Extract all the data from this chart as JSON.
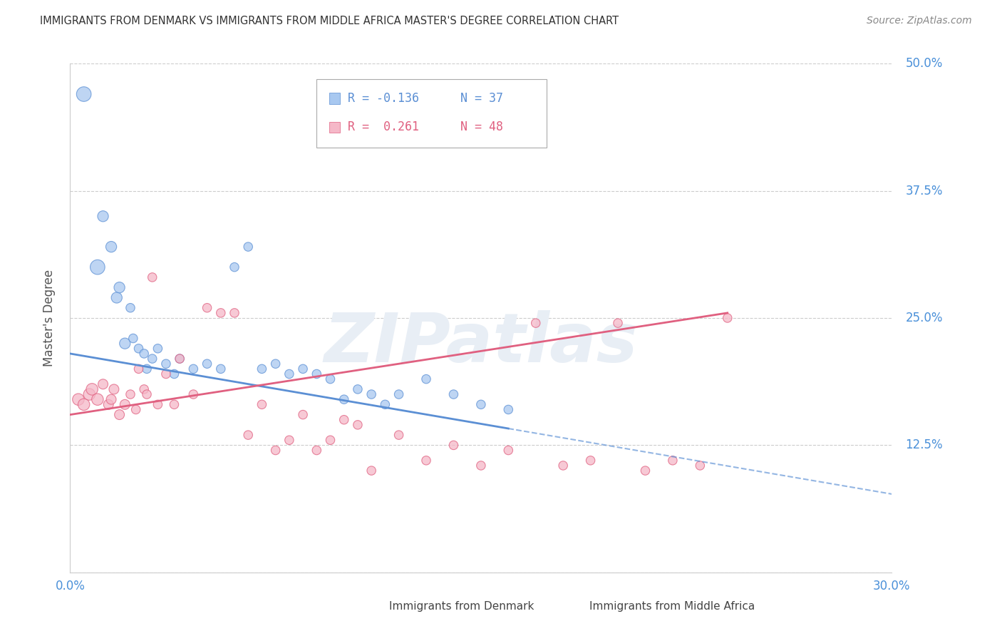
{
  "title": "IMMIGRANTS FROM DENMARK VS IMMIGRANTS FROM MIDDLE AFRICA MASTER'S DEGREE CORRELATION CHART",
  "source": "Source: ZipAtlas.com",
  "ylabel": "Master's Degree",
  "xlim": [
    0.0,
    30.0
  ],
  "ylim": [
    0.0,
    50.0
  ],
  "yticks": [
    0.0,
    12.5,
    25.0,
    37.5,
    50.0
  ],
  "ytick_labels": [
    "",
    "12.5%",
    "25.0%",
    "37.5%",
    "50.0%"
  ],
  "xticks": [
    0.0,
    5.0,
    10.0,
    15.0,
    20.0,
    25.0,
    30.0
  ],
  "denmark_color": "#A8C8F0",
  "denmark_color_solid": "#5B8FD4",
  "middle_africa_color": "#F5B8C8",
  "middle_africa_color_solid": "#E06080",
  "legend_R_denmark": "R = -0.136",
  "legend_N_denmark": "N = 37",
  "legend_R_middle_africa": "R =  0.261",
  "legend_N_middle_africa": "N = 48",
  "denmark_x": [
    0.5,
    1.0,
    1.2,
    1.5,
    1.7,
    1.8,
    2.0,
    2.2,
    2.3,
    2.5,
    2.7,
    2.8,
    3.0,
    3.2,
    3.5,
    3.8,
    4.0,
    4.5,
    5.0,
    5.5,
    6.0,
    6.5,
    7.0,
    7.5,
    8.0,
    8.5,
    9.0,
    9.5,
    10.0,
    10.5,
    11.0,
    11.5,
    12.0,
    13.0,
    14.0,
    15.0,
    16.0
  ],
  "denmark_y": [
    47.0,
    30.0,
    35.0,
    32.0,
    27.0,
    28.0,
    22.5,
    26.0,
    23.0,
    22.0,
    21.5,
    20.0,
    21.0,
    22.0,
    20.5,
    19.5,
    21.0,
    20.0,
    20.5,
    20.0,
    30.0,
    32.0,
    20.0,
    20.5,
    19.5,
    20.0,
    19.5,
    19.0,
    17.0,
    18.0,
    17.5,
    16.5,
    17.5,
    19.0,
    17.5,
    16.5,
    16.0
  ],
  "middle_africa_x": [
    0.3,
    0.5,
    0.7,
    0.8,
    1.0,
    1.2,
    1.4,
    1.5,
    1.6,
    1.8,
    2.0,
    2.2,
    2.4,
    2.5,
    2.7,
    2.8,
    3.0,
    3.2,
    3.5,
    3.8,
    4.0,
    4.5,
    5.0,
    5.5,
    6.0,
    6.5,
    7.0,
    7.5,
    8.0,
    8.5,
    9.0,
    9.5,
    10.0,
    10.5,
    11.0,
    12.0,
    13.0,
    14.0,
    15.0,
    16.0,
    17.0,
    18.0,
    19.0,
    20.0,
    21.0,
    22.0,
    23.0,
    24.0
  ],
  "middle_africa_y": [
    17.0,
    16.5,
    17.5,
    18.0,
    17.0,
    18.5,
    16.5,
    17.0,
    18.0,
    15.5,
    16.5,
    17.5,
    16.0,
    20.0,
    18.0,
    17.5,
    29.0,
    16.5,
    19.5,
    16.5,
    21.0,
    17.5,
    26.0,
    25.5,
    25.5,
    13.5,
    16.5,
    12.0,
    13.0,
    15.5,
    12.0,
    13.0,
    15.0,
    14.5,
    10.0,
    13.5,
    11.0,
    12.5,
    10.5,
    12.0,
    24.5,
    10.5,
    11.0,
    24.5,
    10.0,
    11.0,
    10.5,
    25.0
  ],
  "denmark_trend_y_start": 21.5,
  "denmark_trend_y_solid_end_x": 16.0,
  "denmark_trend_slope": -0.46,
  "middle_africa_trend_y_start": 15.5,
  "middle_africa_trend_y_end": 25.5,
  "middle_africa_trend_x_end": 24.0,
  "background_color": "#FFFFFF",
  "grid_color": "#CCCCCC",
  "axis_color": "#CCCCCC",
  "title_color": "#333333",
  "tick_label_color": "#4A90D9",
  "ylabel_color": "#555555",
  "watermark_color": "#E8EEF5"
}
